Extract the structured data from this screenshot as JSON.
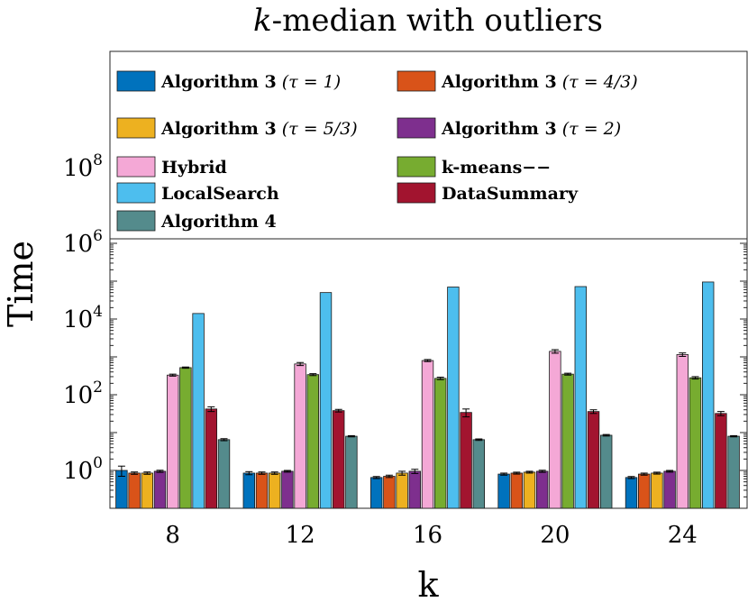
{
  "chart_data": {
    "type": "bar",
    "title_prefix": "k",
    "title_rest": "-median with outliers",
    "xlabel": "k",
    "ylabel": "Time",
    "y_scale": "log",
    "ylim": [
      0.1,
      10000000000
    ],
    "y_ticks": [
      {
        "value": 1,
        "base": "10",
        "exp": "0"
      },
      {
        "value": 100,
        "base": "10",
        "exp": "2"
      },
      {
        "value": 10000,
        "base": "10",
        "exp": "4"
      },
      {
        "value": 1000000,
        "base": "10",
        "exp": "6"
      },
      {
        "value": 100000000,
        "base": "10",
        "exp": "8"
      }
    ],
    "categories": [
      "8",
      "12",
      "16",
      "20",
      "24"
    ],
    "legend_placement": "top (inside plot area)",
    "series": [
      {
        "name": "Algorithm 3",
        "param": "(τ = 1)",
        "color": "#0072BD",
        "values": [
          1.0,
          0.85,
          0.65,
          0.8,
          0.65
        ],
        "errors": [
          0.3,
          0.08,
          0.04,
          0.05,
          0.04
        ]
      },
      {
        "name": "Algorithm 3",
        "param": "(τ = 4/3)",
        "color": "#D95319",
        "values": [
          0.85,
          0.85,
          0.7,
          0.85,
          0.8
        ],
        "errors": [
          0.06,
          0.06,
          0.05,
          0.05,
          0.05
        ]
      },
      {
        "name": "Algorithm 3",
        "param": "(τ = 5/3)",
        "color": "#EDB120",
        "values": [
          0.85,
          0.85,
          0.85,
          0.9,
          0.85
        ],
        "errors": [
          0.06,
          0.06,
          0.1,
          0.05,
          0.05
        ]
      },
      {
        "name": "Algorithm 3",
        "param": "(τ = 2)",
        "color": "#7E2F8E",
        "values": [
          0.95,
          0.95,
          0.95,
          0.95,
          0.95
        ],
        "errors": [
          0.06,
          0.05,
          0.12,
          0.06,
          0.05
        ]
      },
      {
        "name": "Hybrid",
        "param": "",
        "color": "#F4A8D6",
        "values": [
          330,
          650,
          800,
          1400,
          1150
        ],
        "errors": [
          20,
          60,
          50,
          150,
          120
        ]
      },
      {
        "name": "k-means−−",
        "param": "",
        "color": "#77AC30",
        "values": [
          520,
          340,
          270,
          350,
          280
        ],
        "errors": [
          20,
          20,
          20,
          20,
          20
        ]
      },
      {
        "name": "LocalSearch",
        "param": "",
        "color": "#4DBEEE",
        "values": [
          14000,
          50000,
          70000,
          72000,
          95000
        ],
        "errors": [
          0,
          0,
          0,
          0,
          0
        ]
      },
      {
        "name": "DataSummary",
        "param": "",
        "color": "#A2142F",
        "values": [
          42,
          38,
          34,
          36,
          32
        ],
        "errors": [
          6,
          3,
          8,
          4,
          4
        ]
      },
      {
        "name": "Algorithm 4",
        "param": "",
        "color": "#548B8C",
        "values": [
          6.5,
          8.0,
          6.5,
          8.5,
          8.0
        ],
        "errors": [
          0.4,
          0.3,
          0.3,
          0.4,
          0.3
        ]
      }
    ]
  }
}
